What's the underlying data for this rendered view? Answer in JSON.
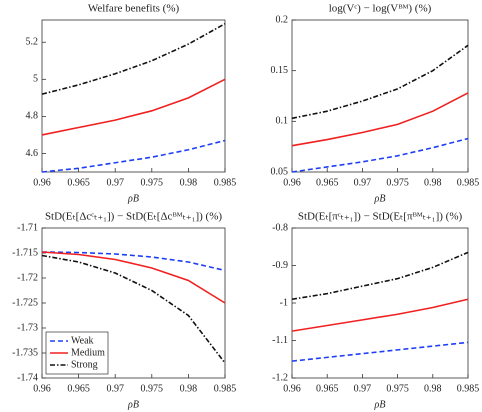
{
  "chart_data": [
    {
      "type": "line",
      "title": "Welfare benefits (%)",
      "x_label": "ρB",
      "x": [
        0.96,
        0.965,
        0.97,
        0.975,
        0.98,
        0.985
      ],
      "xlim": [
        0.96,
        0.985
      ],
      "xticks": [
        0.96,
        0.965,
        0.97,
        0.975,
        0.98,
        0.985
      ],
      "ylim": [
        4.5,
        5.32
      ],
      "yticks": [
        4.6,
        4.8,
        5,
        5.2
      ],
      "series": [
        {
          "color": "#1f3ff5",
          "style": "dashed",
          "values": [
            4.5,
            4.52,
            4.55,
            4.58,
            4.62,
            4.67
          ]
        },
        {
          "color": "#f02020",
          "style": "solid",
          "values": [
            4.7,
            4.74,
            4.78,
            4.83,
            4.9,
            5.0
          ]
        },
        {
          "color": "#111111",
          "style": "dashdot",
          "values": [
            4.92,
            4.97,
            5.03,
            5.1,
            5.19,
            5.3
          ]
        }
      ]
    },
    {
      "type": "line",
      "title": "log(Vᶜ) − log(Vᴮᴹ) (%)",
      "x_label": "ρB",
      "x": [
        0.96,
        0.965,
        0.97,
        0.975,
        0.98,
        0.985
      ],
      "xlim": [
        0.96,
        0.985
      ],
      "xticks": [
        0.96,
        0.965,
        0.97,
        0.975,
        0.98,
        0.985
      ],
      "ylim": [
        0.05,
        0.2
      ],
      "yticks": [
        0.05,
        0.1,
        0.15,
        0.2
      ],
      "series": [
        {
          "color": "#1f3ff5",
          "style": "dashed",
          "values": [
            0.05,
            0.055,
            0.06,
            0.066,
            0.074,
            0.083
          ]
        },
        {
          "color": "#f02020",
          "style": "solid",
          "values": [
            0.076,
            0.082,
            0.089,
            0.097,
            0.11,
            0.128
          ]
        },
        {
          "color": "#111111",
          "style": "dashdot",
          "values": [
            0.103,
            0.11,
            0.12,
            0.132,
            0.15,
            0.175
          ]
        }
      ]
    },
    {
      "type": "line",
      "title": "StD(Eₜ[Δcᶜₜ₊₁]) − StD(Eₜ[Δcᴮᴹₜ₊₁]) (%)",
      "x_label": "ρB",
      "legend": "lower left",
      "x": [
        0.96,
        0.965,
        0.97,
        0.975,
        0.98,
        0.985
      ],
      "xlim": [
        0.96,
        0.985
      ],
      "xticks": [
        0.96,
        0.965,
        0.97,
        0.975,
        0.98,
        0.985
      ],
      "ylim": [
        -1.74,
        -1.71
      ],
      "yticks": [
        -1.74,
        -1.735,
        -1.73,
        -1.725,
        -1.72,
        -1.715,
        -1.71
      ],
      "series": [
        {
          "name": "Weak",
          "color": "#1f3ff5",
          "style": "dashed",
          "values": [
            -1.7148,
            -1.7149,
            -1.7152,
            -1.7158,
            -1.7168,
            -1.7185
          ]
        },
        {
          "name": "Medium",
          "color": "#f02020",
          "style": "solid",
          "values": [
            -1.7148,
            -1.7153,
            -1.7163,
            -1.718,
            -1.7205,
            -1.725
          ]
        },
        {
          "name": "Strong",
          "color": "#111111",
          "style": "dashdot",
          "values": [
            -1.7155,
            -1.7168,
            -1.719,
            -1.7225,
            -1.7275,
            -1.737
          ]
        }
      ]
    },
    {
      "type": "line",
      "title": "StD(Eₜ[πᶜₜ₊₁]) − StD(Eₜ[πᴮᴹₜ₊₁]) (%)",
      "x_label": "ρB",
      "x": [
        0.96,
        0.965,
        0.97,
        0.975,
        0.98,
        0.985
      ],
      "xlim": [
        0.96,
        0.985
      ],
      "xticks": [
        0.96,
        0.965,
        0.97,
        0.975,
        0.98,
        0.985
      ],
      "ylim": [
        -1.2,
        -0.8
      ],
      "yticks": [
        -1.2,
        -1.1,
        -1,
        -0.9,
        -0.8
      ],
      "series": [
        {
          "color": "#1f3ff5",
          "style": "dashed",
          "values": [
            -1.155,
            -1.145,
            -1.135,
            -1.125,
            -1.115,
            -1.105
          ]
        },
        {
          "color": "#f02020",
          "style": "solid",
          "values": [
            -1.075,
            -1.06,
            -1.045,
            -1.03,
            -1.012,
            -0.99
          ]
        },
        {
          "color": "#111111",
          "style": "dashdot",
          "values": [
            -0.99,
            -0.975,
            -0.955,
            -0.935,
            -0.905,
            -0.865
          ]
        }
      ]
    }
  ]
}
